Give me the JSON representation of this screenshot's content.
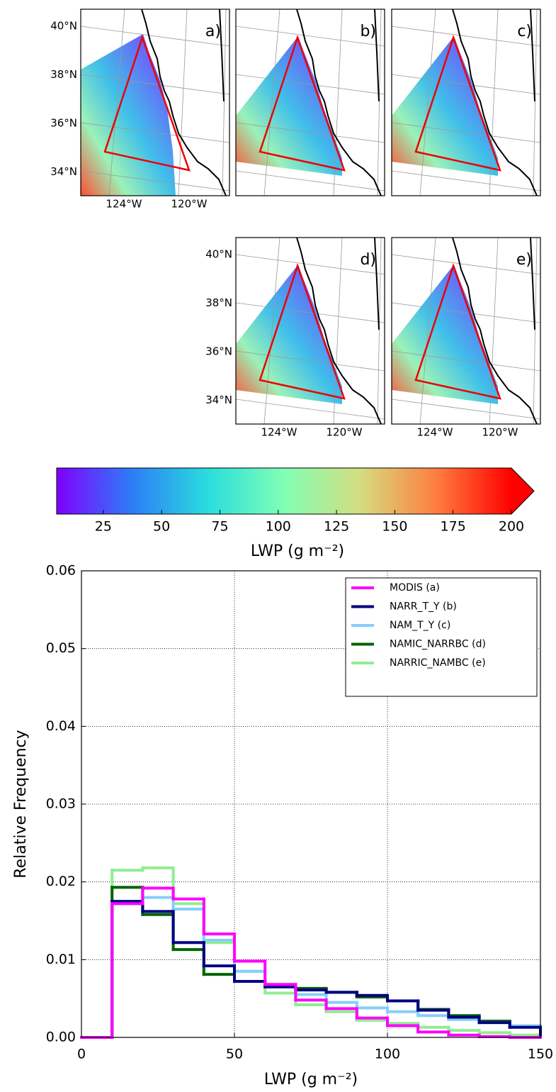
{
  "maps": [
    {
      "label": "a)",
      "lat_labels": [
        "40°N",
        "38°N",
        "36°N",
        "34°N"
      ],
      "lon_labels": [
        "124°W",
        "120°W"
      ]
    },
    {
      "label": "b)"
    },
    {
      "label": "c)"
    },
    {
      "label": "d)",
      "lat_labels": [
        "40°N",
        "38°N",
        "36°N",
        "34°N"
      ],
      "lon_labels": [
        "124°W",
        "120°W"
      ]
    },
    {
      "label": "e)",
      "lon_labels": [
        "124°W",
        "120°W"
      ]
    }
  ],
  "chart_data": [
    {
      "type": "colorbar",
      "xlabel": "LWP (g m⁻²)",
      "xlim": [
        5,
        200
      ],
      "xticks": [
        25,
        50,
        75,
        100,
        125,
        150,
        175,
        200
      ],
      "colors": [
        "#8000ff",
        "#2c7ef7",
        "#2adddd",
        "#80ffb4",
        "#d4dd80",
        "#ff7f40",
        "#ff0000"
      ],
      "extend": "max"
    },
    {
      "type": "step-histogram",
      "xlabel": "LWP (g m⁻²)",
      "ylabel": "Relative Frequency",
      "bins": [
        0,
        10,
        20,
        30,
        40,
        50,
        60,
        70,
        80,
        90,
        100,
        110,
        120,
        130,
        140,
        150
      ],
      "series": [
        {
          "name": "MODIS (a)",
          "color": "#ff00ff",
          "values": [
            0,
            0.0172,
            0.0192,
            0.0178,
            0.0133,
            0.0098,
            0.0068,
            0.0048,
            0.0037,
            0.0025,
            0.0015,
            0.0007,
            0.0003,
            0.0001,
            0
          ]
        },
        {
          "name": "NARR_T_Y (b)",
          "color": "#000080",
          "values": [
            0,
            0.0175,
            0.0162,
            0.0122,
            0.0092,
            0.0072,
            0.0065,
            0.0061,
            0.0058,
            0.0054,
            0.0047,
            0.0035,
            0.0026,
            0.0019,
            0.0013
          ]
        },
        {
          "name": "NAM_T_Y (c)",
          "color": "#87cefa",
          "values": [
            0,
            0.0172,
            0.018,
            0.0165,
            0.0125,
            0.0085,
            0.0065,
            0.0055,
            0.0045,
            0.0038,
            0.0033,
            0.0028,
            0.0023,
            0.0019,
            0.0015
          ]
        },
        {
          "name": "NAMIC_NARRBC (d)",
          "color": "#006400",
          "values": [
            0,
            0.0193,
            0.0158,
            0.0113,
            0.0081,
            0.0072,
            0.0068,
            0.0063,
            0.0058,
            0.0052,
            0.0047,
            0.0036,
            0.0028,
            0.0021,
            0.0014
          ]
        },
        {
          "name": "NARRIC_NAMBC (e)",
          "color": "#90ee90",
          "values": [
            0,
            0.0215,
            0.0218,
            0.0172,
            0.0122,
            0.0085,
            0.0057,
            0.0042,
            0.0033,
            0.0022,
            0.0018,
            0.0013,
            0.0009,
            0.0006,
            0.0003
          ]
        }
      ],
      "xlim": [
        0,
        150
      ],
      "ylim": [
        0,
        0.06
      ],
      "xticks": [
        0,
        50,
        100,
        150
      ],
      "yticks": [
        {
          "value": 0,
          "label": "0.00"
        },
        0.01,
        0.02,
        0.03,
        0.04,
        0.05,
        0.06
      ],
      "grid": true,
      "legend": "upper right"
    }
  ]
}
